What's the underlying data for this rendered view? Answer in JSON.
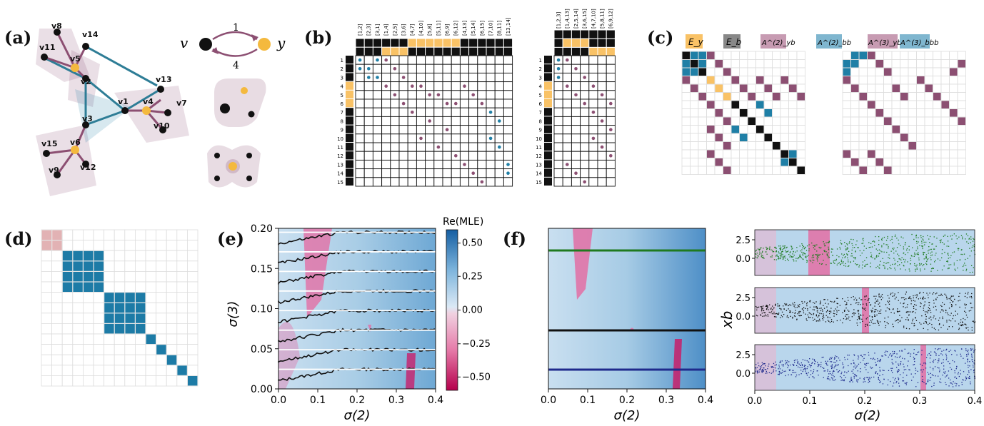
{
  "panels": {
    "a": {
      "label": "(a)",
      "node_labels": [
        "v8",
        "v14",
        "v11",
        "v5",
        "v2",
        "v13",
        "v1",
        "v4",
        "v7",
        "v3",
        "v10",
        "v15",
        "v6",
        "v12",
        "v9"
      ],
      "legend_v": "v",
      "legend_y": "y",
      "legend_top": "1",
      "legend_bottom": "4"
    },
    "b": {
      "label": "(b)",
      "col_headers_left": [
        "[1,2]",
        "[2,3]",
        "[3,1]",
        "[1,4]",
        "[2,5]",
        "[3,6]",
        "[4,7]",
        "[4,10]",
        "[5,8]",
        "[5,11]",
        "[6,9]",
        "[6,12]",
        "[4,13]",
        "[5,14]",
        "[6,15]",
        "[7,10]",
        "[8,11]",
        "[13,14]"
      ],
      "col_headers_right": [
        "[1,2,3]",
        "[1,4,13]",
        "[2,5,14]",
        "[3,6,15]",
        "[4,7,10]",
        "[5,8,11]",
        "[6,9,12]"
      ],
      "row_labels": [
        "1",
        "2",
        "3",
        "4",
        "5",
        "6",
        "7",
        "8",
        "9",
        "10",
        "11",
        "12",
        "13",
        "14",
        "15"
      ]
    },
    "c": {
      "label": "(c)",
      "legend": [
        "E_y",
        "E_b",
        "A^(2)_yb",
        "A^(2)_bb",
        "A^(3)_ybb",
        "A^(3)_bbb"
      ],
      "colors": {
        "yellow": "#f9c266",
        "black": "#111111",
        "purple": "#8c4f72",
        "blue": "#1f7fa6"
      }
    },
    "d": {
      "label": "(d)",
      "colors": {
        "pink": "#e2b2b4",
        "blue": "#1d7ba6"
      }
    },
    "e": {
      "label": "(e)",
      "xlabel": "σ(2)",
      "ylabel": "σ(3)",
      "xticks": [
        "0.0",
        "0.1",
        "0.2",
        "0.3",
        "0.4"
      ],
      "yticks": [
        "0.00",
        "0.05",
        "0.10",
        "0.15",
        "0.20"
      ],
      "colorbar_title": "Re(MLE)",
      "colorbar_ticks": [
        "0.50",
        "0.25",
        "0.00",
        "−0.25",
        "−0.50"
      ]
    },
    "f": {
      "label": "(f)",
      "xlabel": "σ(2)",
      "xticks": [
        "0.0",
        "0.1",
        "0.2",
        "0.3",
        "0.4"
      ],
      "right_ylabel": "xb",
      "right_yticks": [
        "2.5",
        "0.0"
      ],
      "right_xticks": [
        "0.0",
        "0.1",
        "0.2",
        "0.3",
        "0.4"
      ],
      "right_xlabel": "σ(2)",
      "line_colors": [
        "#1f7a1f",
        "#111111",
        "#1f2a8c"
      ]
    }
  },
  "chart_data": [
    {
      "type": "heatmap",
      "xlabel": "σ(2)",
      "ylabel": "σ(3)",
      "xlim": [
        0.0,
        0.4
      ],
      "ylim": [
        0.0,
        0.2
      ],
      "colorbar": {
        "label": "Re(MLE)",
        "range": [
          -0.6,
          0.6
        ],
        "ticks": [
          0.5,
          0.25,
          0.0,
          -0.25,
          -0.5
        ]
      }
    },
    {
      "type": "heatmap",
      "xlabel": "σ(2)",
      "xlim": [
        0.0,
        0.4
      ]
    },
    {
      "type": "scatter",
      "ylabel": "xb",
      "xlabel": "σ(2)",
      "xlim": [
        0.0,
        0.4
      ],
      "yticks": [
        2.5,
        0.0
      ],
      "subplots": 3
    }
  ]
}
